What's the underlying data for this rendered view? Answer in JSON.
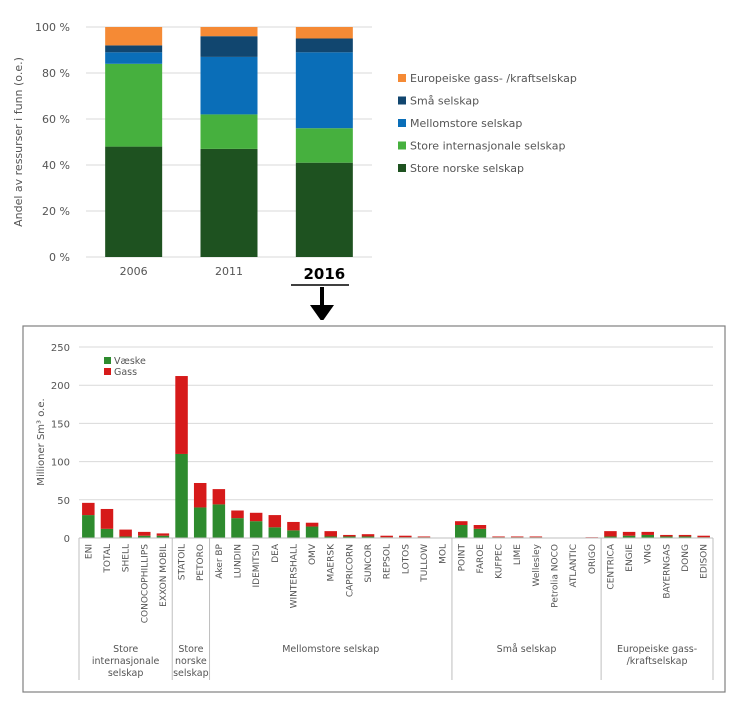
{
  "colors": {
    "store_norske": "#1e5220",
    "store_internasjonale": "#46b03e",
    "mellomstore": "#0a6eb8",
    "sma": "#11466f",
    "europeiske": "#f58a35",
    "vaeske": "#2e8b2e",
    "gass": "#d61a1a",
    "grid": "#d9d9d9",
    "axis_text": "#555555"
  },
  "chart_data": [
    {
      "type": "bar",
      "stacked": true,
      "percent": true,
      "categories": [
        "2006",
        "2011",
        "2016"
      ],
      "highlight_category": "2016",
      "ylabel": "Andel av ressurser i funn (o.e.)",
      "ylim": [
        0,
        100
      ],
      "yticks": [
        "0 %",
        "20 %",
        "40 %",
        "60 %",
        "80 %",
        "100 %"
      ],
      "legend_position": "right",
      "series": [
        {
          "name": "Store norske selskap",
          "color_key": "store_norske",
          "values": [
            48,
            47,
            41
          ]
        },
        {
          "name": "Store internasjonale selskap",
          "color_key": "store_internasjonale",
          "values": [
            36,
            15,
            15
          ]
        },
        {
          "name": "Mellomstore selskap",
          "color_key": "mellomstore",
          "values": [
            5,
            25,
            33
          ]
        },
        {
          "name": "Små selskap",
          "color_key": "sma",
          "values": [
            3,
            9,
            6
          ]
        },
        {
          "name": "Europeiske gass- /kraftselskap",
          "color_key": "europeiske",
          "values": [
            8,
            4,
            5
          ]
        }
      ]
    },
    {
      "type": "bar",
      "stacked": true,
      "ylabel": "Millioner Sm³ o.e.",
      "ylim": [
        0,
        250
      ],
      "yticks": [
        "0",
        "50",
        "100",
        "150",
        "200",
        "250"
      ],
      "grid": true,
      "legend_position": "top-left",
      "categories": [
        "ENI",
        "TOTAL",
        "SHELL",
        "CONOCOPHILLIPS",
        "EXXON MOBIL",
        "STATOIL",
        "PETORO",
        "Aker BP",
        "LUNDIN",
        "IDEMITSU",
        "DEA",
        "WINTERSHALL",
        "OMV",
        "MAERSK",
        "CAPRICORN",
        "SUNCOR",
        "REPSOL",
        "LOTOS",
        "TULLOW",
        "MOL",
        "POINT",
        "FAROE",
        "KUFPEC",
        "LIME",
        "Wellesley",
        "Petrolia NOCO",
        "ATLANTIC",
        "ORIGO",
        "CENTRICA",
        "ENGIE",
        "VNG",
        "BAYERNGAS",
        "DONG",
        "EDISON"
      ],
      "series": [
        {
          "name": "Væske",
          "color_key": "vaeske",
          "values": [
            30,
            12,
            2,
            3,
            3,
            110,
            40,
            44,
            26,
            22,
            14,
            10,
            15,
            2,
            2,
            2,
            1,
            1,
            1,
            0,
            17,
            12,
            1,
            1,
            1,
            0,
            0,
            0,
            2,
            3,
            4,
            2,
            2,
            1
          ]
        },
        {
          "name": "Gass",
          "color_key": "gass",
          "values": [
            16,
            26,
            9,
            5,
            3,
            102,
            32,
            20,
            10,
            11,
            16,
            11,
            5,
            7,
            2,
            3,
            2,
            2,
            1,
            0,
            5,
            5,
            1,
            1,
            1,
            0,
            0,
            1,
            7,
            5,
            4,
            2,
            2,
            2
          ]
        }
      ],
      "groups": [
        {
          "label_lines": [
            "Store",
            "internasjonale",
            "selskap"
          ],
          "count": 5
        },
        {
          "label_lines": [
            "Store",
            "norske",
            "selskap"
          ],
          "count": 2
        },
        {
          "label_lines": [
            "Mellomstore selskap"
          ],
          "count": 13
        },
        {
          "label_lines": [
            "Små selskap"
          ],
          "count": 8
        },
        {
          "label_lines": [
            "Europeiske gass-",
            "/kraftselskap"
          ],
          "count": 6
        }
      ]
    }
  ]
}
